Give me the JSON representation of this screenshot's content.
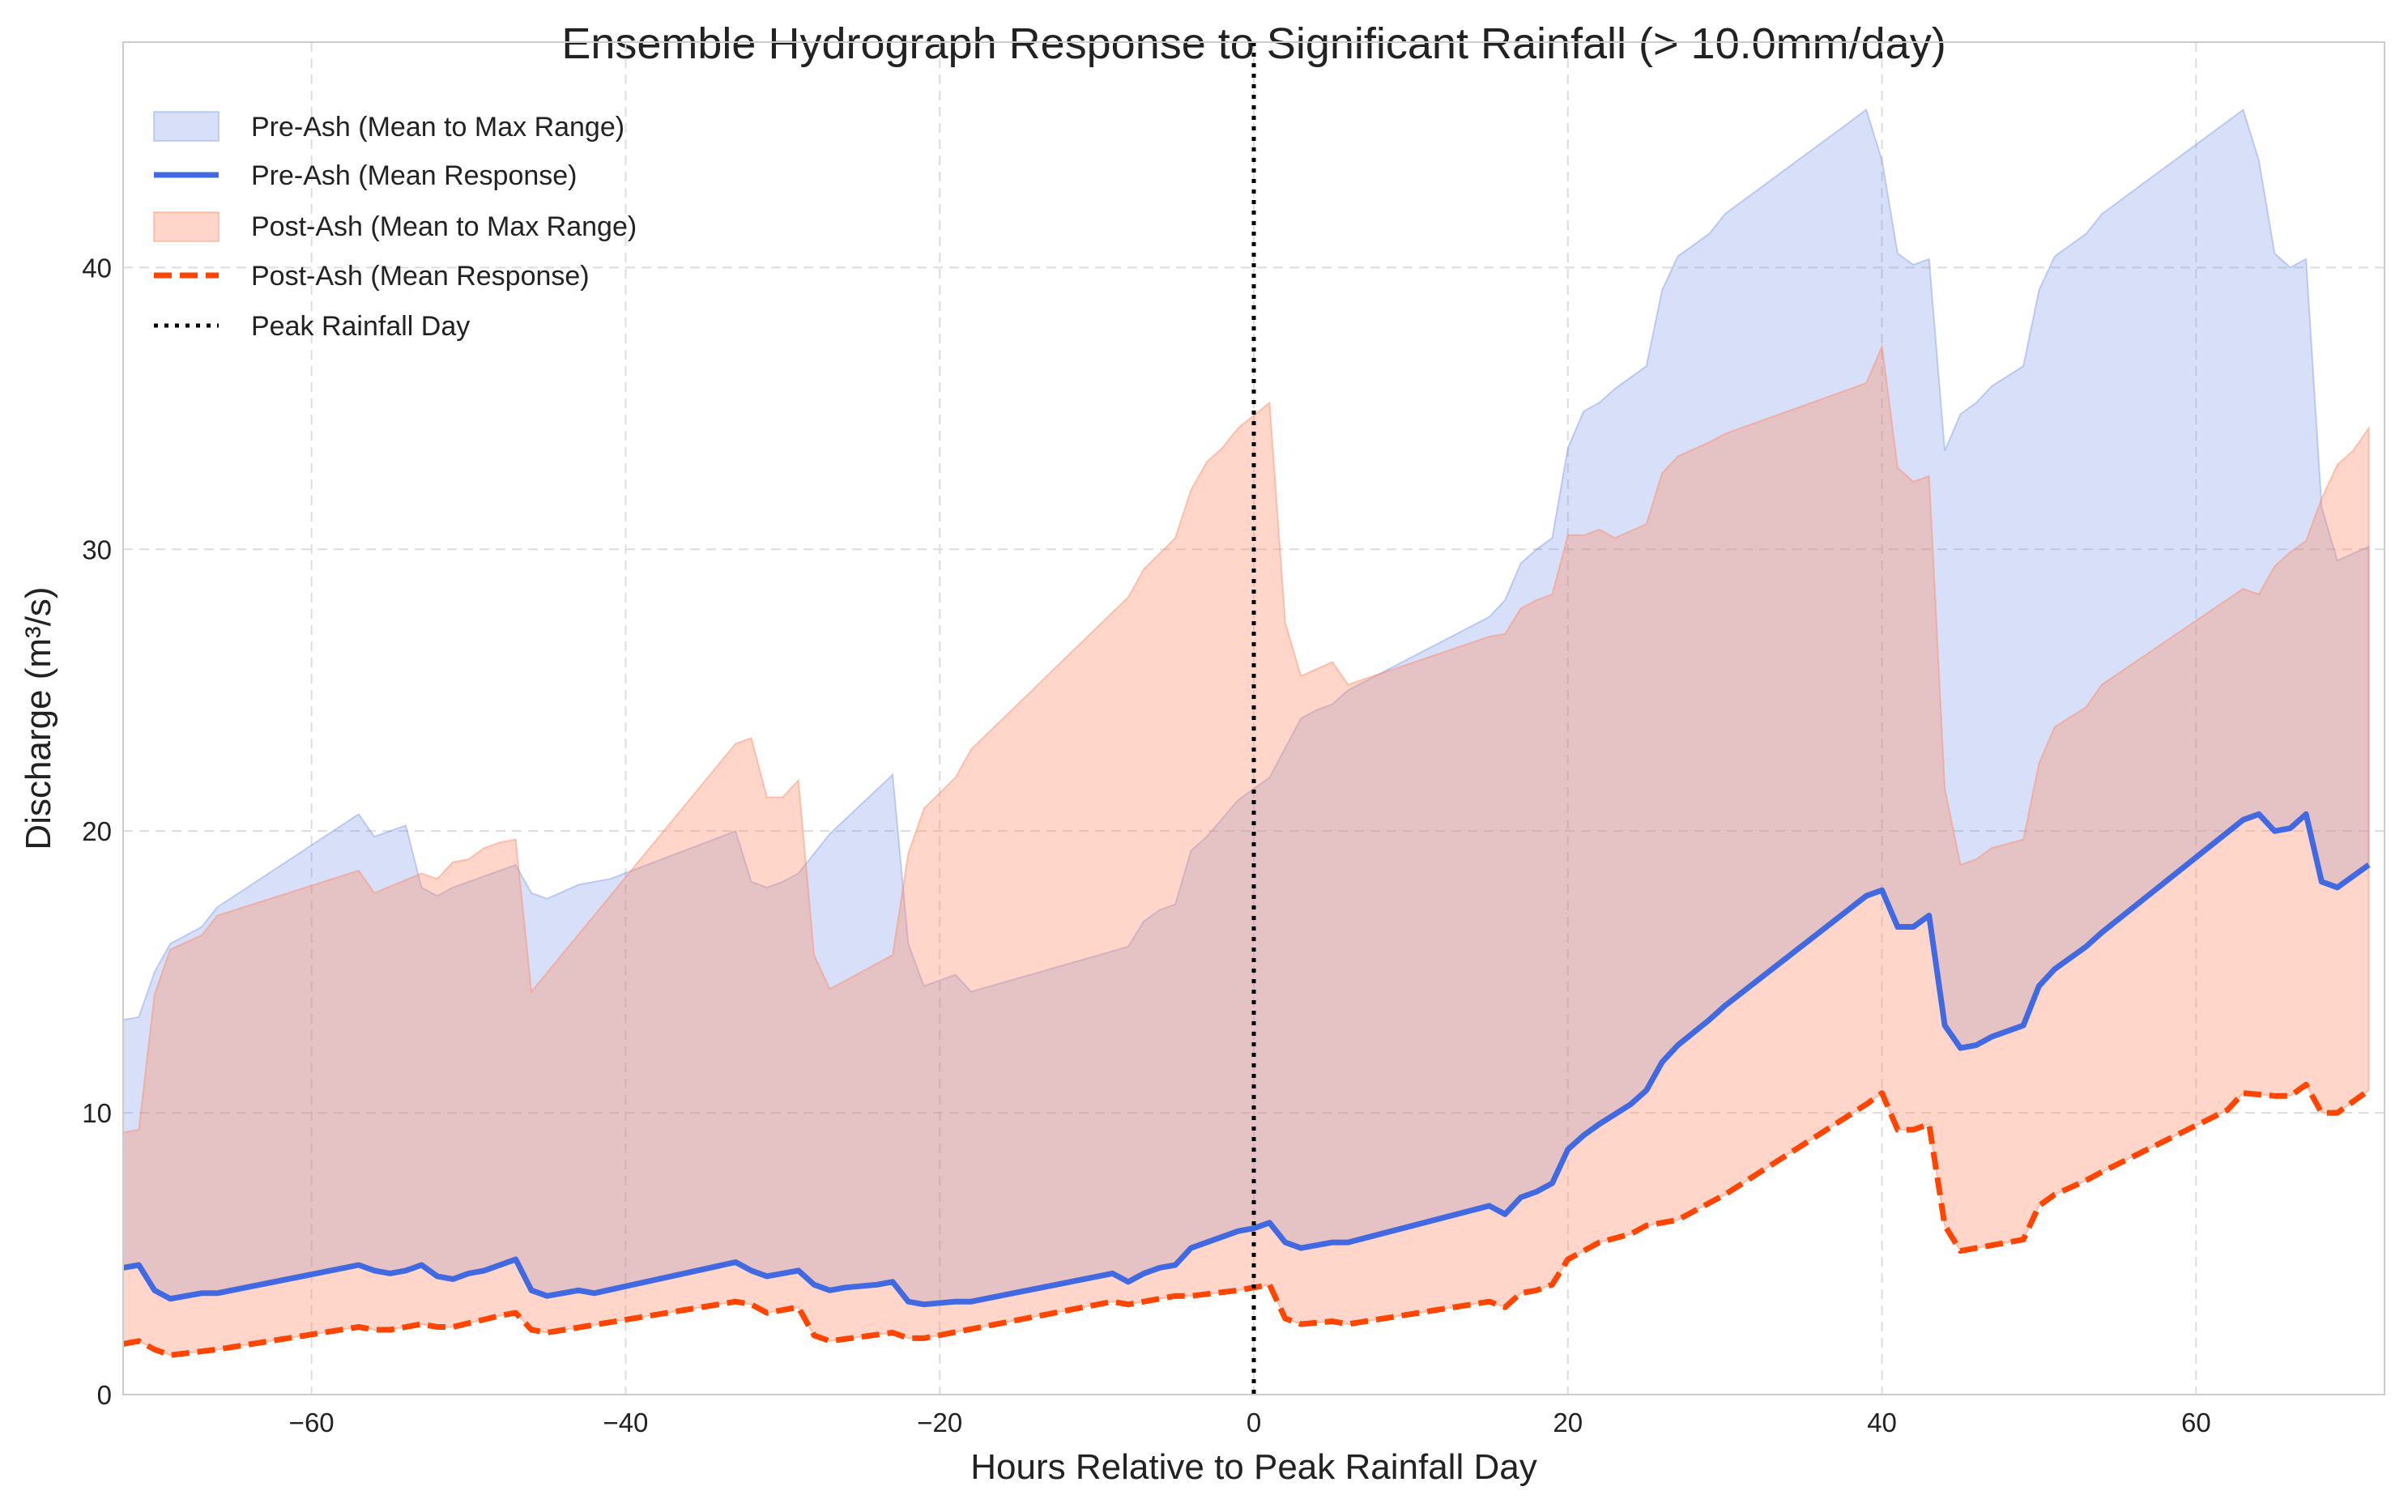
{
  "chart_data": {
    "type": "area",
    "title": "Ensemble Hydrograph Response to Significant Rainfall (> 10.0mm/day)",
    "xlabel": "Hours Relative to Peak Rainfall Day",
    "ylabel": "Discharge (m³/s)",
    "xlim": [
      -72,
      72
    ],
    "ylim": [
      0,
      48
    ],
    "x_ticks": [
      -60,
      -40,
      -20,
      0,
      20,
      40,
      60
    ],
    "y_ticks": [
      0,
      10,
      20,
      30,
      40
    ],
    "x_tick_labels": [
      "−60",
      "−40",
      "−20",
      "0",
      "20",
      "40",
      "60"
    ],
    "y_tick_labels": [
      "0",
      "10",
      "20",
      "30",
      "40"
    ],
    "grid": true,
    "legend_position": "top-left",
    "vline": {
      "x": 0,
      "label": "Peak Rainfall Day",
      "style": "dotted",
      "color": "#000000"
    },
    "series": [
      {
        "name": "Pre-Ash (Mean to Max Range)",
        "kind": "band",
        "color": "#6e8fe6",
        "opacity": 0.28,
        "lower_ref": "Pre-Ash (Mean Response)",
        "points": [
          [
            -72,
            13.3
          ],
          [
            -71,
            13.4
          ],
          [
            -70,
            15
          ],
          [
            -69,
            16
          ],
          [
            -67,
            16.6
          ],
          [
            -66,
            17.3
          ],
          [
            -57,
            20.6
          ],
          [
            -56,
            19.8
          ],
          [
            -55,
            20
          ],
          [
            -54,
            20.2
          ],
          [
            -53,
            18
          ],
          [
            -52,
            17.7
          ],
          [
            -51,
            18
          ],
          [
            -47,
            18.8
          ],
          [
            -46,
            17.8
          ],
          [
            -45,
            17.6
          ],
          [
            -43,
            18.1
          ],
          [
            -41,
            18.3
          ],
          [
            -33,
            20
          ],
          [
            -32,
            18.2
          ],
          [
            -31,
            18
          ],
          [
            -30,
            18.2
          ],
          [
            -29,
            18.5
          ],
          [
            -27,
            19.9
          ],
          [
            -23,
            22
          ],
          [
            -22,
            16
          ],
          [
            -21,
            14.5
          ],
          [
            -19,
            14.9
          ],
          [
            -18,
            14.3
          ],
          [
            -8,
            15.9
          ],
          [
            -7,
            16.8
          ],
          [
            -6,
            17.2
          ],
          [
            -5,
            17.4
          ],
          [
            -4,
            19.3
          ],
          [
            -3,
            19.8
          ],
          [
            -1,
            21.1
          ],
          [
            1,
            21.9
          ],
          [
            3,
            24
          ],
          [
            4,
            24.3
          ],
          [
            5,
            24.5
          ],
          [
            6,
            25
          ],
          [
            15,
            27.6
          ],
          [
            16,
            28.2
          ],
          [
            17,
            29.5
          ],
          [
            18,
            30
          ],
          [
            19,
            30.4
          ],
          [
            20,
            33.6
          ],
          [
            21,
            34.9
          ],
          [
            22,
            35.2
          ],
          [
            23,
            35.7
          ],
          [
            25,
            36.5
          ],
          [
            26,
            39.2
          ],
          [
            27,
            40.4
          ],
          [
            29,
            41.2
          ],
          [
            30,
            41.9
          ],
          [
            39,
            45.6
          ],
          [
            40,
            43.8
          ],
          [
            41,
            40.5
          ],
          [
            42,
            40.1
          ],
          [
            43,
            40.3
          ],
          [
            44,
            33.5
          ],
          [
            45,
            34.8
          ],
          [
            46,
            35.2
          ],
          [
            47,
            35.8
          ],
          [
            49,
            36.5
          ],
          [
            50,
            39.2
          ],
          [
            51,
            40.4
          ],
          [
            53,
            41.2
          ],
          [
            54,
            41.9
          ],
          [
            63,
            45.6
          ],
          [
            64,
            43.8
          ],
          [
            65,
            40.5
          ],
          [
            66,
            40
          ],
          [
            67,
            40.3
          ],
          [
            68,
            31.5
          ],
          [
            69,
            29.6
          ],
          [
            71,
            30.1
          ]
        ]
      },
      {
        "name": "Pre-Ash (Mean Response)",
        "kind": "line",
        "color": "#4169e1",
        "dash": "solid",
        "points": [
          [
            -72,
            4.5
          ],
          [
            -71,
            4.6
          ],
          [
            -70,
            3.7
          ],
          [
            -69,
            3.4
          ],
          [
            -67,
            3.6
          ],
          [
            -66,
            3.6
          ],
          [
            -57,
            4.6
          ],
          [
            -56,
            4.4
          ],
          [
            -55,
            4.3
          ],
          [
            -54,
            4.4
          ],
          [
            -53,
            4.6
          ],
          [
            -52,
            4.2
          ],
          [
            -51,
            4.1
          ],
          [
            -50,
            4.3
          ],
          [
            -49,
            4.4
          ],
          [
            -47,
            4.8
          ],
          [
            -46,
            3.7
          ],
          [
            -45,
            3.5
          ],
          [
            -43,
            3.7
          ],
          [
            -42,
            3.6
          ],
          [
            -33,
            4.7
          ],
          [
            -32,
            4.4
          ],
          [
            -31,
            4.2
          ],
          [
            -30,
            4.3
          ],
          [
            -29,
            4.4
          ],
          [
            -28,
            3.9
          ],
          [
            -27,
            3.7
          ],
          [
            -26,
            3.8
          ],
          [
            -24,
            3.9
          ],
          [
            -23,
            4
          ],
          [
            -22,
            3.3
          ],
          [
            -21,
            3.2
          ],
          [
            -19,
            3.3
          ],
          [
            -18,
            3.3
          ],
          [
            -9,
            4.3
          ],
          [
            -8,
            4
          ],
          [
            -7,
            4.3
          ],
          [
            -6,
            4.5
          ],
          [
            -5,
            4.6
          ],
          [
            -4,
            5.2
          ],
          [
            -3,
            5.4
          ],
          [
            -1,
            5.8
          ],
          [
            0,
            5.9
          ],
          [
            1,
            6.1
          ],
          [
            2,
            5.4
          ],
          [
            3,
            5.2
          ],
          [
            4,
            5.3
          ],
          [
            5,
            5.4
          ],
          [
            6,
            5.4
          ],
          [
            15,
            6.7
          ],
          [
            16,
            6.4
          ],
          [
            17,
            7
          ],
          [
            18,
            7.2
          ],
          [
            19,
            7.5
          ],
          [
            20,
            8.7
          ],
          [
            21,
            9.2
          ],
          [
            22,
            9.6
          ],
          [
            24,
            10.3
          ],
          [
            25,
            10.8
          ],
          [
            26,
            11.8
          ],
          [
            27,
            12.4
          ],
          [
            29,
            13.3
          ],
          [
            30,
            13.8
          ],
          [
            39,
            17.7
          ],
          [
            40,
            17.9
          ],
          [
            41,
            16.6
          ],
          [
            42,
            16.6
          ],
          [
            43,
            17
          ],
          [
            44,
            13.1
          ],
          [
            45,
            12.3
          ],
          [
            46,
            12.4
          ],
          [
            47,
            12.7
          ],
          [
            49,
            13.1
          ],
          [
            50,
            14.5
          ],
          [
            51,
            15.1
          ],
          [
            53,
            15.9
          ],
          [
            54,
            16.4
          ],
          [
            63,
            20.4
          ],
          [
            64,
            20.6
          ],
          [
            65,
            20
          ],
          [
            66,
            20.1
          ],
          [
            67,
            20.6
          ],
          [
            68,
            18.2
          ],
          [
            69,
            18
          ],
          [
            71,
            18.8
          ]
        ]
      },
      {
        "name": "Post-Ash (Mean to Max Range)",
        "kind": "band",
        "color": "#ff8a65",
        "opacity": 0.35,
        "lower_ref": "Post-Ash (Mean Response)",
        "points": [
          [
            -72,
            9.3
          ],
          [
            -71,
            9.4
          ],
          [
            -70,
            14.2
          ],
          [
            -69,
            15.8
          ],
          [
            -67,
            16.3
          ],
          [
            -66,
            17
          ],
          [
            -57,
            18.6
          ],
          [
            -56,
            17.8
          ],
          [
            -53,
            18.5
          ],
          [
            -52,
            18.3
          ],
          [
            -51,
            18.9
          ],
          [
            -50,
            19
          ],
          [
            -49,
            19.4
          ],
          [
            -48,
            19.6
          ],
          [
            -47,
            19.7
          ],
          [
            -46,
            14.3
          ],
          [
            -33,
            23.1
          ],
          [
            -32,
            23.3
          ],
          [
            -31,
            21.2
          ],
          [
            -30,
            21.2
          ],
          [
            -29,
            21.8
          ],
          [
            -28,
            15.6
          ],
          [
            -27,
            14.4
          ],
          [
            -26,
            14.7
          ],
          [
            -23,
            15.6
          ],
          [
            -22,
            19.2
          ],
          [
            -21,
            20.8
          ],
          [
            -19,
            21.9
          ],
          [
            -18,
            22.9
          ],
          [
            -8,
            28.3
          ],
          [
            -7,
            29.3
          ],
          [
            -5,
            30.4
          ],
          [
            -4,
            32.1
          ],
          [
            -3,
            33.1
          ],
          [
            -2,
            33.6
          ],
          [
            -1,
            34.3
          ],
          [
            1,
            35.2
          ],
          [
            2,
            27.4
          ],
          [
            3,
            25.5
          ],
          [
            5,
            26
          ],
          [
            6,
            25.2
          ],
          [
            15,
            26.9
          ],
          [
            16,
            27
          ],
          [
            17,
            27.9
          ],
          [
            18,
            28.2
          ],
          [
            19,
            28.4
          ],
          [
            20,
            30.5
          ],
          [
            21,
            30.5
          ],
          [
            22,
            30.7
          ],
          [
            23,
            30.4
          ],
          [
            25,
            30.9
          ],
          [
            26,
            32.7
          ],
          [
            27,
            33.3
          ],
          [
            29,
            33.8
          ],
          [
            30,
            34.1
          ],
          [
            39,
            35.9
          ],
          [
            40,
            37.2
          ],
          [
            41,
            32.9
          ],
          [
            42,
            32.4
          ],
          [
            43,
            32.6
          ],
          [
            44,
            21.5
          ],
          [
            45,
            18.8
          ],
          [
            46,
            19
          ],
          [
            47,
            19.4
          ],
          [
            49,
            19.7
          ],
          [
            50,
            22.4
          ],
          [
            51,
            23.7
          ],
          [
            53,
            24.4
          ],
          [
            54,
            25.2
          ],
          [
            63,
            28.6
          ],
          [
            64,
            28.4
          ],
          [
            65,
            29.4
          ],
          [
            66,
            29.9
          ],
          [
            67,
            30.3
          ],
          [
            68,
            31.8
          ],
          [
            69,
            33
          ],
          [
            70,
            33.5
          ],
          [
            71,
            34.3
          ]
        ]
      },
      {
        "name": "Post-Ash (Mean Response)",
        "kind": "line",
        "color": "#ff4500",
        "dash": "dashed",
        "points": [
          [
            -72,
            1.8
          ],
          [
            -71,
            1.9
          ],
          [
            -70,
            1.6
          ],
          [
            -69,
            1.4
          ],
          [
            -66,
            1.6
          ],
          [
            -57,
            2.4
          ],
          [
            -56,
            2.3
          ],
          [
            -55,
            2.3
          ],
          [
            -53,
            2.5
          ],
          [
            -52,
            2.4
          ],
          [
            -51,
            2.4
          ],
          [
            -48,
            2.8
          ],
          [
            -47,
            2.9
          ],
          [
            -46,
            2.3
          ],
          [
            -45,
            2.2
          ],
          [
            -33,
            3.3
          ],
          [
            -32,
            3.2
          ],
          [
            -31,
            2.9
          ],
          [
            -29,
            3.1
          ],
          [
            -28,
            2.1
          ],
          [
            -27,
            1.9
          ],
          [
            -23,
            2.2
          ],
          [
            -22,
            2
          ],
          [
            -21,
            2
          ],
          [
            -9,
            3.3
          ],
          [
            -8,
            3.2
          ],
          [
            -6,
            3.4
          ],
          [
            -5,
            3.5
          ],
          [
            -4,
            3.5
          ],
          [
            -1,
            3.7
          ],
          [
            1,
            3.9
          ],
          [
            2,
            2.7
          ],
          [
            3,
            2.5
          ],
          [
            5,
            2.6
          ],
          [
            6,
            2.5
          ],
          [
            15,
            3.3
          ],
          [
            16,
            3.1
          ],
          [
            17,
            3.6
          ],
          [
            18,
            3.7
          ],
          [
            19,
            3.9
          ],
          [
            20,
            4.8
          ],
          [
            21,
            5.1
          ],
          [
            22,
            5.4
          ],
          [
            24,
            5.7
          ],
          [
            25,
            6
          ],
          [
            26,
            6.1
          ],
          [
            27,
            6.2
          ],
          [
            29,
            6.8
          ],
          [
            30,
            7.1
          ],
          [
            39,
            10.3
          ],
          [
            40,
            10.7
          ],
          [
            41,
            9.4
          ],
          [
            42,
            9.4
          ],
          [
            43,
            9.6
          ],
          [
            44,
            6
          ],
          [
            45,
            5.1
          ],
          [
            46,
            5.2
          ],
          [
            49,
            5.5
          ],
          [
            50,
            6.7
          ],
          [
            51,
            7.1
          ],
          [
            53,
            7.6
          ],
          [
            54,
            7.9
          ],
          [
            62,
            10.1
          ],
          [
            63,
            10.7
          ],
          [
            65,
            10.6
          ],
          [
            66,
            10.6
          ],
          [
            67,
            11
          ],
          [
            68,
            10
          ],
          [
            69,
            10
          ],
          [
            71,
            10.8
          ]
        ]
      }
    ]
  }
}
